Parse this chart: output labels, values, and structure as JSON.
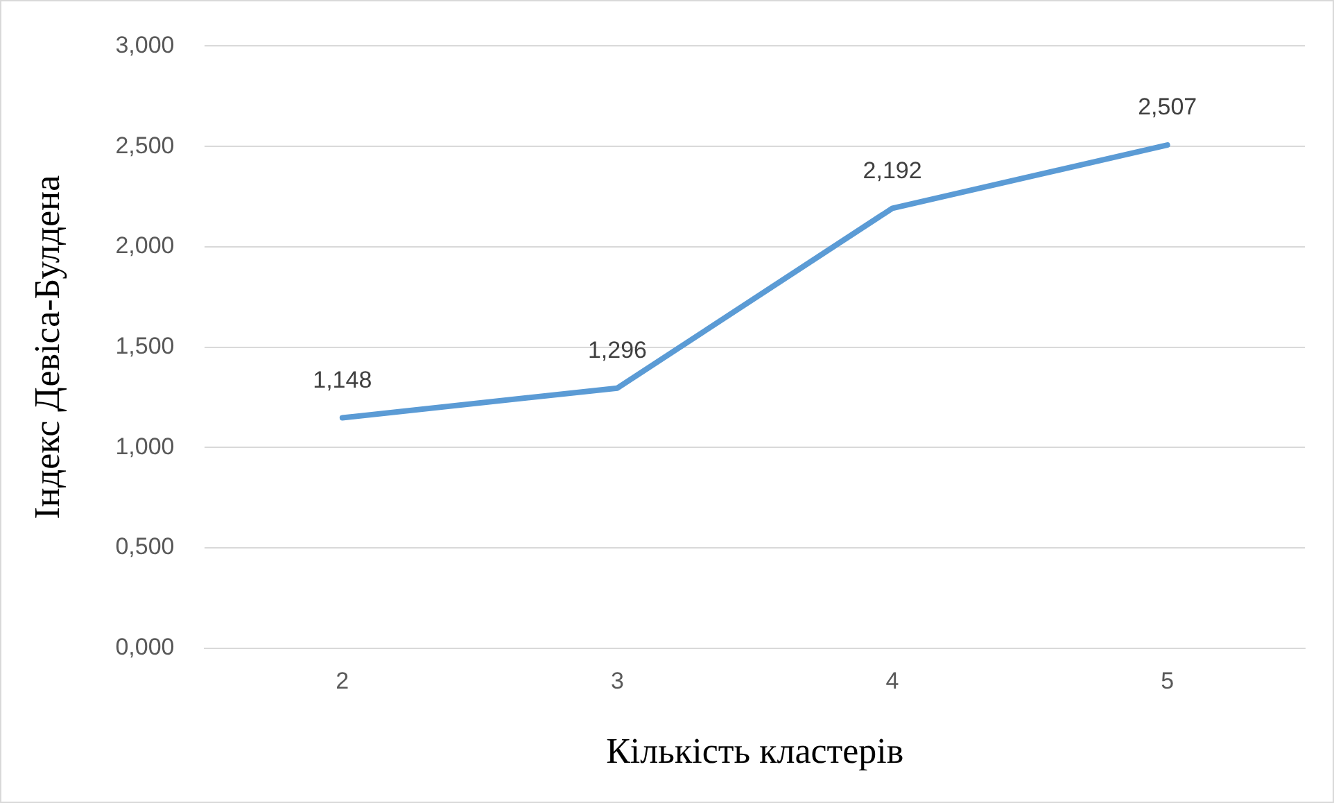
{
  "chart_data": {
    "type": "line",
    "xlabel": "Кількість кластерів",
    "ylabel": "Індекс Девіса-Булдена",
    "categories": [
      "2",
      "3",
      "4",
      "5"
    ],
    "series": [
      {
        "color": "#5b9bd5",
        "values": [
          1.148,
          1.296,
          2.192,
          2.507
        ],
        "value_labels": [
          "1,148",
          "1,296",
          "2,192",
          "2,507"
        ]
      }
    ],
    "ylim": [
      0,
      3
    ],
    "yticks": [
      {
        "value": 0,
        "label": "0,000"
      },
      {
        "value": 0.5,
        "label": "0,500"
      },
      {
        "value": 1,
        "label": "1,000"
      },
      {
        "value": 1.5,
        "label": "1,500"
      },
      {
        "value": 2,
        "label": "2,000"
      },
      {
        "value": 2.5,
        "label": "2,500"
      },
      {
        "value": 3,
        "label": "3,000"
      }
    ],
    "grid": "y",
    "marker": "none",
    "line_style": "solid",
    "legend": false
  }
}
